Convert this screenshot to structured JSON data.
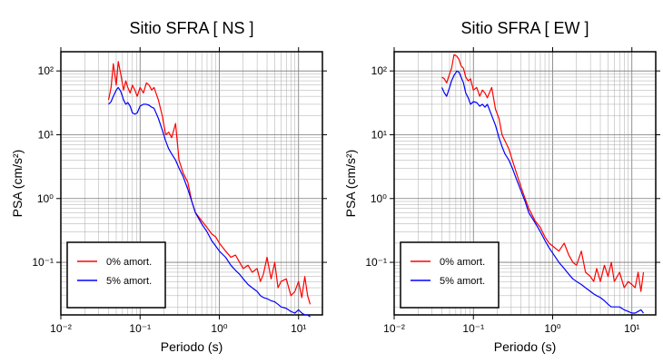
{
  "chart_data": [
    {
      "type": "line",
      "title": "Sitio SFRA [ NS ]",
      "xlabel": "Periodo (s)",
      "ylabel": "PSA (cm/s²)",
      "xscale": "log",
      "yscale": "log",
      "xlim": [
        0.01,
        20
      ],
      "ylim": [
        0.015,
        200
      ],
      "grid": true,
      "legend_position": "bottom-left",
      "xtick_labels": [
        "10⁻²",
        "10⁻¹",
        "10⁰",
        "10¹"
      ],
      "ytick_labels": [
        "10⁻¹",
        "10⁰",
        "10¹",
        "10²"
      ],
      "series": [
        {
          "name": "0% amort.",
          "color": "#ff0000",
          "x": [
            0.04,
            0.043,
            0.046,
            0.05,
            0.053,
            0.057,
            0.062,
            0.066,
            0.07,
            0.075,
            0.08,
            0.086,
            0.092,
            0.1,
            0.11,
            0.12,
            0.13,
            0.14,
            0.15,
            0.17,
            0.19,
            0.21,
            0.23,
            0.25,
            0.28,
            0.31,
            0.35,
            0.4,
            0.45,
            0.5,
            0.6,
            0.7,
            0.8,
            0.9,
            1.0,
            1.2,
            1.4,
            1.6,
            1.8,
            2.0,
            2.3,
            2.6,
            3.0,
            3.3,
            3.6,
            4.0,
            4.5,
            5.0,
            5.5,
            6.0,
            7.0,
            8.0,
            9.0,
            10.0,
            11.0,
            12.0,
            13.0,
            14.0
          ],
          "y": [
            35,
            55,
            130,
            60,
            140,
            90,
            50,
            70,
            55,
            45,
            60,
            50,
            40,
            55,
            45,
            65,
            60,
            50,
            55,
            35,
            20,
            10,
            11,
            9,
            15,
            4,
            2.5,
            1.8,
            0.9,
            0.6,
            0.45,
            0.35,
            0.28,
            0.25,
            0.2,
            0.15,
            0.12,
            0.13,
            0.1,
            0.08,
            0.09,
            0.07,
            0.08,
            0.05,
            0.065,
            0.12,
            0.055,
            0.1,
            0.04,
            0.05,
            0.055,
            0.03,
            0.035,
            0.05,
            0.028,
            0.06,
            0.03,
            0.022
          ]
        },
        {
          "name": "5% amort.",
          "color": "#0000ff",
          "x": [
            0.04,
            0.043,
            0.046,
            0.05,
            0.053,
            0.057,
            0.062,
            0.066,
            0.07,
            0.075,
            0.08,
            0.086,
            0.092,
            0.1,
            0.11,
            0.12,
            0.13,
            0.14,
            0.15,
            0.17,
            0.19,
            0.21,
            0.23,
            0.25,
            0.28,
            0.31,
            0.35,
            0.4,
            0.45,
            0.5,
            0.6,
            0.7,
            0.8,
            0.9,
            1.0,
            1.2,
            1.4,
            1.6,
            1.8,
            2.0,
            2.3,
            2.6,
            3.0,
            3.3,
            3.6,
            4.0,
            4.5,
            5.0,
            5.5,
            6.0,
            7.0,
            8.0,
            9.0,
            10.0,
            11.0,
            12.0,
            13.0,
            14.0
          ],
          "y": [
            30,
            33,
            40,
            50,
            55,
            48,
            35,
            30,
            32,
            28,
            22,
            21,
            22,
            28,
            30,
            30,
            29,
            27,
            26,
            18,
            12,
            8,
            6,
            5,
            4,
            3,
            2.2,
            1.4,
            0.9,
            0.6,
            0.4,
            0.3,
            0.22,
            0.18,
            0.15,
            0.12,
            0.09,
            0.075,
            0.065,
            0.055,
            0.045,
            0.04,
            0.035,
            0.03,
            0.028,
            0.027,
            0.025,
            0.024,
            0.022,
            0.02,
            0.019,
            0.017,
            0.016,
            0.018,
            0.016,
            0.015,
            0.015,
            0.014
          ]
        }
      ]
    },
    {
      "type": "line",
      "title": "Sitio SFRA [ EW ]",
      "xlabel": "Periodo (s)",
      "ylabel": "PSA (cm/s²)",
      "xscale": "log",
      "yscale": "log",
      "xlim": [
        0.01,
        20
      ],
      "ylim": [
        0.015,
        200
      ],
      "grid": true,
      "legend_position": "bottom-left",
      "xtick_labels": [
        "10⁻²",
        "10⁻¹",
        "10⁰",
        "10¹"
      ],
      "ytick_labels": [
        "10⁻¹",
        "10⁰",
        "10¹",
        "10²"
      ],
      "series": [
        {
          "name": "0% amort.",
          "color": "#ff0000",
          "x": [
            0.04,
            0.043,
            0.046,
            0.05,
            0.053,
            0.057,
            0.062,
            0.066,
            0.07,
            0.075,
            0.08,
            0.086,
            0.092,
            0.1,
            0.11,
            0.12,
            0.13,
            0.14,
            0.15,
            0.17,
            0.19,
            0.21,
            0.23,
            0.25,
            0.28,
            0.31,
            0.35,
            0.4,
            0.45,
            0.5,
            0.6,
            0.7,
            0.8,
            0.9,
            1.0,
            1.2,
            1.4,
            1.6,
            1.8,
            2.0,
            2.3,
            2.6,
            3.0,
            3.3,
            3.6,
            4.0,
            4.5,
            5.0,
            5.5,
            6.0,
            7.0,
            8.0,
            9.0,
            10.0,
            11.0,
            12.0,
            13.0,
            14.0
          ],
          "y": [
            80,
            75,
            65,
            90,
            110,
            180,
            170,
            150,
            120,
            110,
            80,
            70,
            75,
            50,
            55,
            40,
            50,
            45,
            38,
            55,
            25,
            18,
            10,
            8,
            6,
            4,
            2.5,
            1.5,
            1.0,
            0.7,
            0.45,
            0.35,
            0.25,
            0.2,
            0.18,
            0.15,
            0.2,
            0.13,
            0.1,
            0.09,
            0.15,
            0.07,
            0.06,
            0.05,
            0.08,
            0.05,
            0.09,
            0.06,
            0.1,
            0.05,
            0.07,
            0.04,
            0.05,
            0.045,
            0.04,
            0.07,
            0.035,
            0.07
          ]
        },
        {
          "name": "5% amort.",
          "color": "#0000ff",
          "x": [
            0.04,
            0.043,
            0.046,
            0.05,
            0.053,
            0.057,
            0.062,
            0.066,
            0.07,
            0.075,
            0.08,
            0.086,
            0.092,
            0.1,
            0.11,
            0.12,
            0.13,
            0.14,
            0.15,
            0.17,
            0.19,
            0.21,
            0.23,
            0.25,
            0.28,
            0.31,
            0.35,
            0.4,
            0.45,
            0.5,
            0.6,
            0.7,
            0.8,
            0.9,
            1.0,
            1.2,
            1.4,
            1.6,
            1.8,
            2.0,
            2.3,
            2.6,
            3.0,
            3.3,
            3.6,
            4.0,
            4.5,
            5.0,
            5.5,
            6.0,
            7.0,
            8.0,
            9.0,
            10.0,
            11.0,
            12.0,
            13.0,
            14.0
          ],
          "y": [
            55,
            45,
            40,
            55,
            70,
            85,
            100,
            95,
            80,
            65,
            45,
            38,
            30,
            33,
            32,
            28,
            30,
            27,
            30,
            20,
            14,
            9,
            6.5,
            5,
            4,
            3,
            2,
            1.3,
            0.9,
            0.6,
            0.42,
            0.3,
            0.22,
            0.17,
            0.14,
            0.1,
            0.08,
            0.065,
            0.055,
            0.05,
            0.045,
            0.04,
            0.035,
            0.032,
            0.03,
            0.028,
            0.025,
            0.022,
            0.02,
            0.02,
            0.02,
            0.018,
            0.017,
            0.016,
            0.016,
            0.017,
            0.018,
            0.016
          ]
        }
      ]
    }
  ]
}
